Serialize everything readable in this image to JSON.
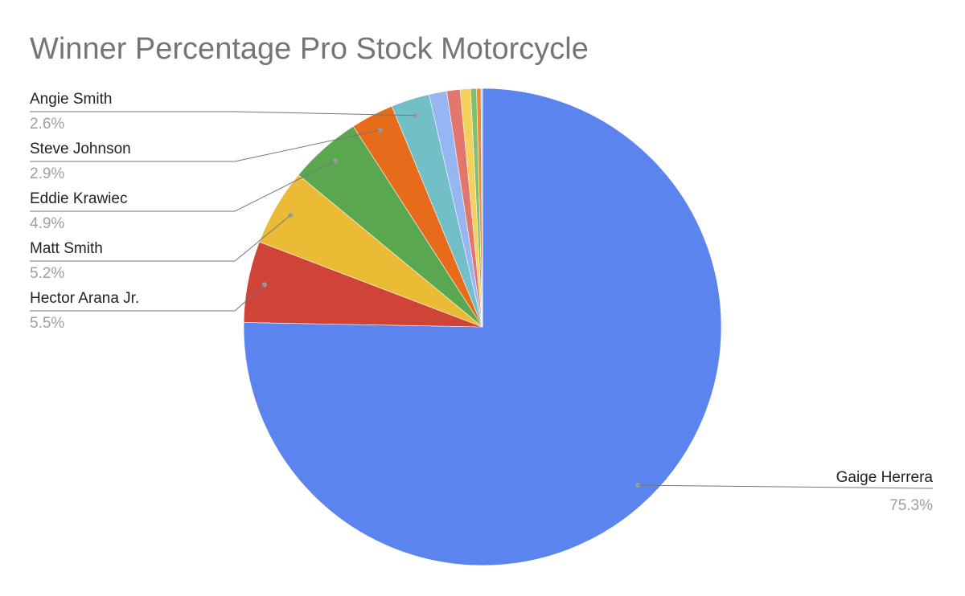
{
  "chart_data": {
    "type": "pie",
    "title": "Winner Percentage Pro Stock Motorcycle",
    "slices": [
      {
        "label": "Gaige Herrera",
        "value": 75.3,
        "display": "75.3%",
        "color": "#5b84ef",
        "labeled": true
      },
      {
        "label": "Hector Arana Jr.",
        "value": 5.5,
        "display": "5.5%",
        "color": "#d04437",
        "labeled": true
      },
      {
        "label": "Matt Smith",
        "value": 5.2,
        "display": "5.2%",
        "color": "#ecbb36",
        "labeled": true
      },
      {
        "label": "Eddie Krawiec",
        "value": 4.9,
        "display": "4.9%",
        "color": "#5aa74f",
        "labeled": true
      },
      {
        "label": "Steve Johnson",
        "value": 2.9,
        "display": "2.9%",
        "color": "#e66b1a",
        "labeled": true
      },
      {
        "label": "Angie Smith",
        "value": 2.6,
        "display": "2.6%",
        "color": "#72bfc8",
        "labeled": true
      },
      {
        "label": "",
        "value": 1.2,
        "display": "",
        "color": "#97b4f3",
        "labeled": false
      },
      {
        "label": "",
        "value": 0.9,
        "display": "",
        "color": "#e3766c",
        "labeled": false
      },
      {
        "label": "",
        "value": 0.7,
        "display": "",
        "color": "#f4d05c",
        "labeled": false
      },
      {
        "label": "",
        "value": 0.4,
        "display": "",
        "color": "#7fbf6f",
        "labeled": false
      },
      {
        "label": "",
        "value": 0.3,
        "display": "",
        "color": "#f08a3a",
        "labeled": false
      },
      {
        "label": "",
        "value": 0.1,
        "display": "",
        "color": "#9ad6dc",
        "labeled": false
      }
    ],
    "start_angle": "top",
    "direction": "clockwise",
    "label_color": "#222222",
    "value_color": "#9e9e9e",
    "leader_color": "#757575"
  }
}
